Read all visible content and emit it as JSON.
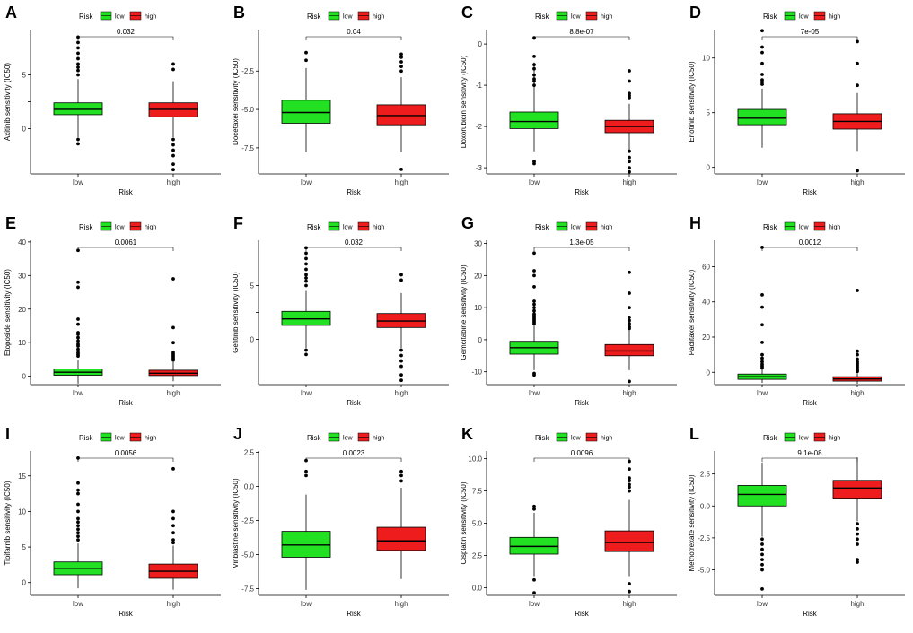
{
  "figure": {
    "legend_title": "Risk",
    "x_axis_label": "Risk",
    "colors": {
      "low": "#22e022",
      "high": "#ee1c1c",
      "outline": "#000000"
    }
  },
  "chart_data": [
    {
      "panel": "A",
      "type": "boxplot",
      "title": "",
      "ylabel": "Axitinib sensitivity (IC50)",
      "xlabel": "Risk",
      "categories": [
        "low",
        "high"
      ],
      "legend": [
        "low",
        "high"
      ],
      "pvalue": "0.032",
      "ylim": [
        -4.2,
        9.2
      ],
      "yticks": [
        0,
        2.5,
        5
      ],
      "yticklabels": [
        "0",
        "",
        "5"
      ],
      "series": [
        {
          "name": "low",
          "q1": 1.3,
          "median": 1.8,
          "q3": 2.4,
          "whisker_low": -0.8,
          "whisker_high": 4.6,
          "outliers": [
            8.5,
            8,
            7.5,
            7,
            6.5,
            6,
            5.7,
            5.4,
            5,
            -1,
            -1.4
          ]
        },
        {
          "name": "high",
          "q1": 1.1,
          "median": 1.8,
          "q3": 2.4,
          "whisker_low": -0.8,
          "whisker_high": 4.4,
          "outliers": [
            6,
            5.5,
            -1,
            -1.5,
            -2,
            -2.5,
            -3.3,
            -3.8
          ]
        }
      ]
    },
    {
      "panel": "B",
      "type": "boxplot",
      "title": "",
      "ylabel": "Docetaxel sensitivity (IC50)",
      "xlabel": "Risk",
      "categories": [
        "low",
        "high"
      ],
      "legend": [
        "low",
        "high"
      ],
      "pvalue": "0.04",
      "ylim": [
        -9.2,
        0.2
      ],
      "yticks": [
        -2.5,
        -5,
        -7.5
      ],
      "yticklabels": [
        "-2.5",
        "-5.0",
        "-7.5"
      ],
      "series": [
        {
          "name": "low",
          "q1": -5.9,
          "median": -5.2,
          "q3": -4.4,
          "whisker_low": -7.8,
          "whisker_high": -2.3,
          "outliers": [
            -1.3,
            -1.8
          ]
        },
        {
          "name": "high",
          "q1": -6.0,
          "median": -5.4,
          "q3": -4.7,
          "whisker_low": -7.8,
          "whisker_high": -2.9,
          "outliers": [
            -1.4,
            -1.6,
            -1.9,
            -2.2,
            -2.5,
            -8.9
          ]
        }
      ]
    },
    {
      "panel": "C",
      "type": "boxplot",
      "title": "",
      "ylabel": "Doxorubicin sensitivity (IC50)",
      "xlabel": "Risk",
      "categories": [
        "low",
        "high"
      ],
      "legend": [
        "low",
        "high"
      ],
      "pvalue": "8.8e-07",
      "ylim": [
        -3.15,
        0.35
      ],
      "yticks": [
        0,
        -1,
        -2,
        -3
      ],
      "yticklabels": [
        "0",
        "-1",
        "-2",
        "-3"
      ],
      "series": [
        {
          "name": "low",
          "q1": -2.05,
          "median": -1.88,
          "q3": -1.65,
          "whisker_low": -2.6,
          "whisker_high": -0.45,
          "outliers": [
            0.15,
            -0.3,
            -0.5,
            -0.6,
            -0.75,
            -0.85,
            -0.9,
            -1.0,
            -2.85,
            -2.9
          ]
        },
        {
          "name": "high",
          "q1": -2.15,
          "median": -2.0,
          "q3": -1.85,
          "whisker_low": -2.6,
          "whisker_high": -1.45,
          "outliers": [
            -0.65,
            -0.9,
            -1.2,
            -1.25,
            -1.3,
            -2.6,
            -2.75,
            -2.85,
            -3.0,
            -3.1
          ]
        }
      ]
    },
    {
      "panel": "D",
      "type": "boxplot",
      "title": "",
      "ylabel": "Erlotinib sensitivity (IC50)",
      "xlabel": "Risk",
      "categories": [
        "low",
        "high"
      ],
      "legend": [
        "low",
        "high"
      ],
      "pvalue": "7e-05",
      "ylim": [
        -0.6,
        12.6
      ],
      "yticks": [
        0,
        5,
        10
      ],
      "yticklabels": [
        "0",
        "5",
        "10"
      ],
      "series": [
        {
          "name": "low",
          "q1": 3.9,
          "median": 4.5,
          "q3": 5.3,
          "whisker_low": 1.8,
          "whisker_high": 7.2,
          "outliers": [
            12.5,
            11,
            10.5,
            9.5,
            8.5,
            8,
            7.8,
            7.6
          ]
        },
        {
          "name": "high",
          "q1": 3.5,
          "median": 4.2,
          "q3": 4.9,
          "whisker_low": 1.5,
          "whisker_high": 6.8,
          "outliers": [
            11.5,
            9.5,
            7.5,
            -0.3
          ]
        }
      ]
    },
    {
      "panel": "E",
      "type": "boxplot",
      "title": "",
      "ylabel": "Etoposide sensitivity (IC50)",
      "xlabel": "Risk",
      "categories": [
        "low",
        "high"
      ],
      "legend": [
        "low",
        "high"
      ],
      "pvalue": "0.0061",
      "ylim": [
        -2.5,
        40.5
      ],
      "yticks": [
        0,
        10,
        20,
        30,
        40
      ],
      "yticklabels": [
        "0",
        "10",
        "20",
        "30",
        "40"
      ],
      "series": [
        {
          "name": "low",
          "q1": 0.3,
          "median": 1.2,
          "q3": 2.2,
          "whisker_low": -2.2,
          "whisker_high": 4.8,
          "outliers": [
            37.5,
            28,
            26.5,
            17,
            15.5,
            13,
            12.5,
            11.5,
            10.5,
            9.5,
            9,
            8,
            7,
            6.5,
            6
          ]
        },
        {
          "name": "high",
          "q1": 0.2,
          "median": 0.9,
          "q3": 1.8,
          "whisker_low": -1.5,
          "whisker_high": 4.2,
          "outliers": [
            29,
            14.5,
            10,
            7,
            6.5,
            6,
            5.5,
            5,
            4.8
          ]
        }
      ]
    },
    {
      "panel": "F",
      "type": "boxplot",
      "title": "",
      "ylabel": "Gefitinib sensitivity (IC50)",
      "xlabel": "Risk",
      "categories": [
        "low",
        "high"
      ],
      "legend": [
        "low",
        "high"
      ],
      "pvalue": "0.032",
      "ylim": [
        -4.2,
        9.2
      ],
      "yticks": [
        0,
        2.5,
        5
      ],
      "yticklabels": [
        "0",
        "",
        "5"
      ],
      "series": [
        {
          "name": "low",
          "q1": 1.3,
          "median": 1.9,
          "q3": 2.6,
          "whisker_low": -0.8,
          "whisker_high": 4.5,
          "outliers": [
            8.5,
            8,
            7.5,
            7,
            6.5,
            6,
            5.7,
            5.4,
            5,
            -1,
            -1.4
          ]
        },
        {
          "name": "high",
          "q1": 1.1,
          "median": 1.7,
          "q3": 2.4,
          "whisker_low": -0.8,
          "whisker_high": 4.3,
          "outliers": [
            6,
            5.5,
            -1,
            -1.5,
            -2,
            -2.5,
            -3.3,
            -3.8
          ]
        }
      ]
    },
    {
      "panel": "G",
      "type": "boxplot",
      "title": "",
      "ylabel": "Gemcitabine sensitivity (IC50)",
      "xlabel": "Risk",
      "categories": [
        "low",
        "high"
      ],
      "legend": [
        "low",
        "high"
      ],
      "pvalue": "1.3e-05",
      "ylim": [
        -14,
        31
      ],
      "yticks": [
        -10,
        0,
        10,
        20,
        30
      ],
      "yticklabels": [
        "-10",
        "0",
        "10",
        "20",
        "30"
      ],
      "series": [
        {
          "name": "low",
          "q1": -4.5,
          "median": -2.5,
          "q3": -0.5,
          "whisker_low": -9.5,
          "whisker_high": 4.5,
          "outliers": [
            27,
            21.5,
            20,
            16.5,
            12,
            11,
            10,
            9,
            8,
            7.5,
            7,
            6.5,
            6,
            5.5,
            5,
            -10.5,
            -11
          ]
        },
        {
          "name": "high",
          "q1": -5,
          "median": -3.5,
          "q3": -1.5,
          "whisker_low": -9.5,
          "whisker_high": 3,
          "outliers": [
            21,
            14.5,
            10,
            7,
            6,
            5,
            4,
            3.5,
            -13
          ]
        }
      ]
    },
    {
      "panel": "H",
      "type": "boxplot",
      "title": "",
      "ylabel": "Paclitaxel sensitivity (IC50)",
      "xlabel": "Risk",
      "categories": [
        "low",
        "high"
      ],
      "legend": [
        "low",
        "high"
      ],
      "pvalue": "0.0012",
      "ylim": [
        -7,
        75
      ],
      "yticks": [
        0,
        20,
        40,
        60
      ],
      "yticklabels": [
        "0",
        "20",
        "40",
        "60"
      ],
      "series": [
        {
          "name": "low",
          "q1": -4,
          "median": -2.5,
          "q3": -1,
          "whisker_low": -6,
          "whisker_high": 2,
          "outliers": [
            71,
            44,
            37,
            27,
            17,
            10,
            8,
            6,
            4.5,
            3.5,
            2.5
          ]
        },
        {
          "name": "high",
          "q1": -5,
          "median": -3.8,
          "q3": -2.5,
          "whisker_low": -6.5,
          "whisker_high": -0.5,
          "outliers": [
            46.5,
            12,
            10,
            7.5,
            6,
            5,
            4,
            3,
            2,
            1,
            0.5
          ]
        }
      ]
    },
    {
      "panel": "I",
      "type": "boxplot",
      "title": "",
      "ylabel": "Tipifarnib sensitivity (IC50)",
      "xlabel": "Risk",
      "categories": [
        "low",
        "high"
      ],
      "legend": [
        "low",
        "high"
      ],
      "pvalue": "0.0056",
      "ylim": [
        -1.8,
        18.5
      ],
      "yticks": [
        0,
        5,
        10,
        15
      ],
      "yticklabels": [
        "0",
        "5",
        "10",
        "15"
      ],
      "series": [
        {
          "name": "low",
          "q1": 1.1,
          "median": 2.0,
          "q3": 2.9,
          "whisker_low": -0.8,
          "whisker_high": 5.5,
          "outliers": [
            17.5,
            14,
            13,
            12.5,
            11,
            10,
            9,
            8.5,
            8,
            7.5,
            7,
            6.5,
            6
          ]
        },
        {
          "name": "high",
          "q1": 0.6,
          "median": 1.6,
          "q3": 2.6,
          "whisker_low": -1,
          "whisker_high": 5.2,
          "outliers": [
            16,
            10,
            9,
            8,
            7,
            6,
            5.6
          ]
        }
      ]
    },
    {
      "panel": "J",
      "type": "boxplot",
      "title": "",
      "ylabel": "Vinblastine sensitivity (IC50)",
      "xlabel": "Risk",
      "categories": [
        "low",
        "high"
      ],
      "legend": [
        "low",
        "high"
      ],
      "pvalue": "0.0023",
      "ylim": [
        -8,
        2.6
      ],
      "yticks": [
        2.5,
        0,
        -2.5,
        -5,
        -7.5
      ],
      "yticklabels": [
        "2.5",
        "0.0",
        "-2.5",
        "-5.0",
        "-7.5"
      ],
      "series": [
        {
          "name": "low",
          "q1": -5.2,
          "median": -4.3,
          "q3": -3.3,
          "whisker_low": -7.6,
          "whisker_high": -0.6,
          "outliers": [
            1.9,
            1.1,
            0.8
          ]
        },
        {
          "name": "high",
          "q1": -4.7,
          "median": -4.0,
          "q3": -3.0,
          "whisker_low": -6.8,
          "whisker_high": -0.1,
          "outliers": [
            1.1,
            0.8,
            0.4
          ]
        }
      ]
    },
    {
      "panel": "K",
      "type": "boxplot",
      "title": "",
      "ylabel": "Cisplatin sensitivity (IC50)",
      "xlabel": "Risk",
      "categories": [
        "low",
        "high"
      ],
      "legend": [
        "low",
        "high"
      ],
      "pvalue": "0.0096",
      "ylim": [
        -0.6,
        10.6
      ],
      "yticks": [
        0,
        2.5,
        5,
        7.5,
        10
      ],
      "yticklabels": [
        "0.0",
        "2.5",
        "5.0",
        "7.5",
        "10.0"
      ],
      "series": [
        {
          "name": "low",
          "q1": 2.6,
          "median": 3.2,
          "q3": 3.9,
          "whisker_low": 0.9,
          "whisker_high": 5.8,
          "outliers": [
            6.3,
            6.1,
            0.6,
            -0.4
          ]
        },
        {
          "name": "high",
          "q1": 2.8,
          "median": 3.5,
          "q3": 4.4,
          "whisker_low": 0.9,
          "whisker_high": 6.8,
          "outliers": [
            9.8,
            9.2,
            8.5,
            8.3,
            8,
            7.8,
            7.5,
            0.3,
            -0.3
          ]
        }
      ]
    },
    {
      "panel": "L",
      "type": "boxplot",
      "title": "",
      "ylabel": "Methotrexate sensitivity (IC50)",
      "xlabel": "Risk",
      "categories": [
        "low",
        "high"
      ],
      "legend": [
        "low",
        "high"
      ],
      "pvalue": "9.1e-08",
      "ylim": [
        -7,
        4.3
      ],
      "yticks": [
        2.5,
        0,
        -2.5,
        -5
      ],
      "yticklabels": [
        "2.5",
        "0.0",
        "-2.5",
        "-5.0"
      ],
      "series": [
        {
          "name": "low",
          "q1": 0,
          "median": 0.9,
          "q3": 1.6,
          "whisker_low": -2.4,
          "whisker_high": 3.4,
          "outliers": [
            -2.6,
            -3,
            -3.4,
            -3.8,
            -4.2,
            -4.6,
            -5,
            -6.5
          ]
        },
        {
          "name": "high",
          "q1": 0.6,
          "median": 1.4,
          "q3": 2,
          "whisker_low": -1.2,
          "whisker_high": 3.8,
          "outliers": [
            -1.4,
            -1.8,
            -2.2,
            -2.6,
            -3,
            -4.2,
            -4.4
          ]
        }
      ]
    }
  ]
}
